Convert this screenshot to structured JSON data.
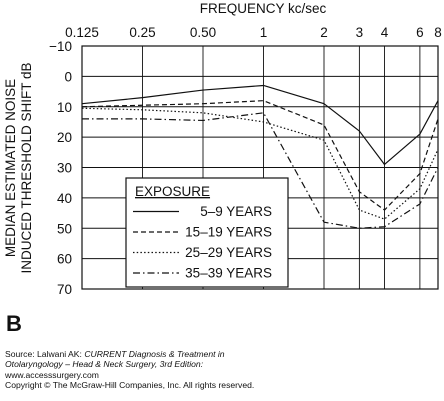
{
  "chart_data": {
    "type": "line",
    "title": "FREQUENCY kc/sec",
    "xlabel": "FREQUENCY kc/sec",
    "ylabel_lines": [
      "MEDIAN ESTIMATED NOISE",
      "INDUCED THRESHOLD SHIFT dB"
    ],
    "x_tick_labels": [
      "0.125",
      "0.25",
      "0.50",
      "1",
      "2",
      "3",
      "4",
      "6",
      "8"
    ],
    "y_tick_labels": [
      "−10",
      "0",
      "10",
      "20",
      "30",
      "40",
      "50",
      "60",
      "70"
    ],
    "y_ticks": [
      -10,
      0,
      10,
      20,
      30,
      40,
      50,
      60,
      70
    ],
    "ylim": [
      -10,
      70
    ],
    "y_inverted": true,
    "grid": true,
    "legend_title": "EXPOSURE",
    "legend_placement": "bottom-left",
    "series": [
      {
        "name": "5–9 YEARS",
        "dash": "solid",
        "points": [
          [
            0.125,
            9
          ],
          [
            0.25,
            7
          ],
          [
            0.5,
            4.5
          ],
          [
            1,
            3
          ],
          [
            2,
            9
          ],
          [
            3,
            18
          ],
          [
            4,
            29
          ],
          [
            6,
            19
          ],
          [
            8,
            8
          ]
        ]
      },
      {
        "name": "15–19 YEARS",
        "dash": "dashed",
        "points": [
          [
            0.125,
            10
          ],
          [
            0.25,
            9.5
          ],
          [
            0.5,
            9
          ],
          [
            1,
            8
          ],
          [
            2,
            16
          ],
          [
            3,
            38
          ],
          [
            4,
            44
          ],
          [
            6,
            32
          ],
          [
            8,
            14
          ]
        ]
      },
      {
        "name": "25–29 YEARS",
        "dash": "dotted",
        "points": [
          [
            0.125,
            10.5
          ],
          [
            0.25,
            11
          ],
          [
            0.5,
            12
          ],
          [
            1,
            15
          ],
          [
            2,
            21
          ],
          [
            3,
            44
          ],
          [
            4,
            47
          ],
          [
            6,
            37
          ],
          [
            8,
            24
          ]
        ]
      },
      {
        "name": "35–39 YEARS",
        "dash": "dashdot",
        "points": [
          [
            0.125,
            14
          ],
          [
            0.25,
            14
          ],
          [
            0.5,
            14.5
          ],
          [
            1,
            12
          ],
          [
            2,
            48
          ],
          [
            3,
            50
          ],
          [
            4,
            49.5
          ],
          [
            6,
            42
          ],
          [
            8,
            30
          ]
        ]
      }
    ]
  },
  "panel_label": "B",
  "source": {
    "line1_prefix": "Source: Lalwani AK: ",
    "line1_italic": "CURRENT Diagnosis & Treatment in",
    "line2_italic": "Otolaryngology – Head & Neck Surgery, 3rd Edition:",
    "line3": "www.accesssurgery.com",
    "line4": "Copyright © The McGraw-Hill Companies, Inc. All rights reserved."
  }
}
